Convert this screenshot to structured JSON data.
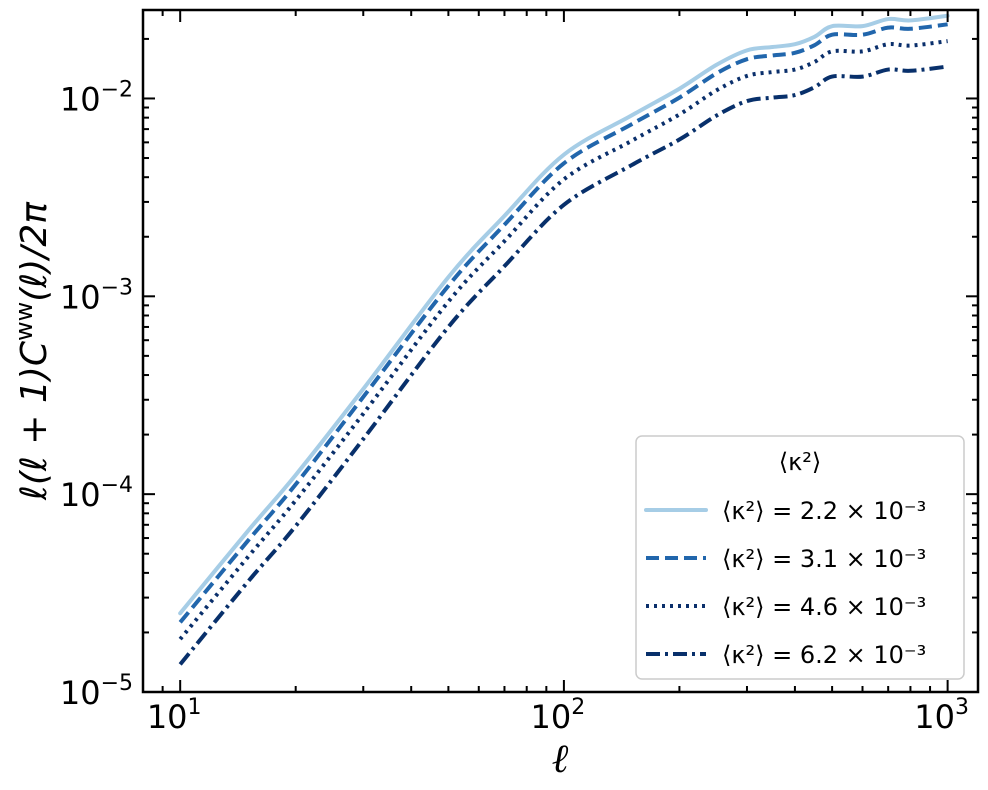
{
  "chart_data": {
    "type": "line",
    "xscale": "log",
    "yscale": "log",
    "xlim": [
      8,
      1200
    ],
    "ylim": [
      1e-05,
      0.028
    ],
    "xlabel": "ℓ",
    "ylabel": "ℓ(ℓ + 1)C^ww(ℓ)/2π",
    "x_ticks": [
      {
        "value": 10,
        "base": "10",
        "exp": "1"
      },
      {
        "value": 100,
        "base": "10",
        "exp": "2"
      },
      {
        "value": 1000,
        "base": "10",
        "exp": "3"
      }
    ],
    "y_ticks": [
      {
        "value": 1e-05,
        "base": "10",
        "exp": "−5"
      },
      {
        "value": 0.0001,
        "base": "10",
        "exp": "−4"
      },
      {
        "value": 0.001,
        "base": "10",
        "exp": "−3"
      },
      {
        "value": 0.01,
        "base": "10",
        "exp": "−2"
      }
    ],
    "grid": false,
    "legend": {
      "position": "lower-right",
      "title": "⟨κ²⟩"
    },
    "x": [
      10,
      15,
      20,
      30,
      50,
      70,
      100,
      150,
      200,
      250,
      300,
      350,
      400,
      450,
      500,
      600,
      700,
      800,
      1000
    ],
    "series": [
      {
        "name": "⟨κ²⟩ = 2.2 × 10⁻³",
        "color": "#a6cde6",
        "dash": "solid",
        "values": [
          2.5e-05,
          6.5e-05,
          0.000125,
          0.00034,
          0.00125,
          0.00255,
          0.0052,
          0.0082,
          0.0112,
          0.0148,
          0.0175,
          0.0182,
          0.0188,
          0.0205,
          0.0232,
          0.0232,
          0.0252,
          0.0248,
          0.0262
        ]
      },
      {
        "name": "⟨κ²⟩ = 3.1 × 10⁻³",
        "color": "#2166ac",
        "dash": "dashed",
        "values": [
          2.25e-05,
          5.8e-05,
          0.000112,
          0.00031,
          0.00113,
          0.0023,
          0.0047,
          0.0074,
          0.0101,
          0.0134,
          0.0158,
          0.0165,
          0.017,
          0.0186,
          0.021,
          0.021,
          0.0228,
          0.0225,
          0.0237
        ]
      },
      {
        "name": "⟨κ²⟩ = 4.6 × 10⁻³",
        "color": "#0a2f6b",
        "dash": "dotted",
        "values": [
          1.85e-05,
          4.8e-05,
          9.3e-05,
          0.000255,
          0.00094,
          0.0019,
          0.0039,
          0.0061,
          0.0083,
          0.011,
          0.013,
          0.0136,
          0.014,
          0.0153,
          0.0173,
          0.0173,
          0.0188,
          0.0185,
          0.0195
        ]
      },
      {
        "name": "⟨κ²⟩ = 6.2 × 10⁻³",
        "color": "#08306b",
        "dash": "dashdot",
        "values": [
          1.38e-05,
          3.6e-05,
          6.9e-05,
          0.00019,
          0.0007,
          0.00142,
          0.0029,
          0.0046,
          0.0062,
          0.0082,
          0.0097,
          0.0101,
          0.0104,
          0.0114,
          0.0129,
          0.0129,
          0.014,
          0.0138,
          0.0145
        ]
      }
    ]
  }
}
